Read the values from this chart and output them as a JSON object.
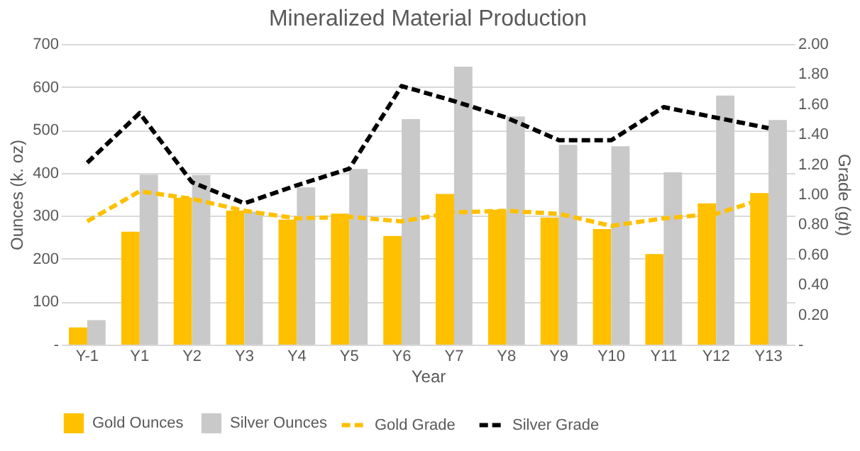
{
  "chart_data": {
    "type": "bar",
    "title": "Mineralized Material Production",
    "xlabel": "Year",
    "ylabel": "Ounces (k. oz)",
    "y2label": "Grade (g/t)",
    "categories": [
      "Y-1",
      "Y1",
      "Y2",
      "Y3",
      "Y4",
      "Y5",
      "Y6",
      "Y7",
      "Y8",
      "Y9",
      "Y10",
      "Y11",
      "Y12",
      "Y13"
    ],
    "series": [
      {
        "name": "Gold Ounces",
        "color": "#ffc000",
        "values": [
          40,
          263,
          342,
          312,
          291,
          305,
          253,
          351,
          314,
          296,
          269,
          211,
          329,
          353
        ]
      },
      {
        "name": "Silver Ounces",
        "color": "#c9c9c9",
        "values": [
          57,
          396,
          395,
          310,
          366,
          409,
          525,
          647,
          531,
          465,
          462,
          401,
          580,
          523
        ]
      },
      {
        "name": "Gold Grade",
        "type": "line",
        "axis": "y2",
        "line_style": "dashed",
        "color": "#ffc000",
        "values": [
          0.82,
          1.02,
          0.97,
          0.89,
          0.84,
          0.85,
          0.82,
          0.88,
          0.89,
          0.87,
          0.79,
          0.84,
          0.87,
          0.98
        ]
      },
      {
        "name": "Silver Grade",
        "type": "line",
        "axis": "y2",
        "line_style": "dashed",
        "color": "#000000",
        "values": [
          1.21,
          1.54,
          1.08,
          0.94,
          1.06,
          1.17,
          1.72,
          1.62,
          1.51,
          1.36,
          1.36,
          1.58,
          1.51,
          1.44
        ]
      }
    ],
    "ylim": [
      0,
      700
    ],
    "yticks": [
      {
        "value": 0,
        "label": "-"
      },
      100,
      200,
      300,
      400,
      500,
      600,
      700
    ],
    "y2lim": [
      0,
      2
    ],
    "y2ticks": [
      {
        "value": 0,
        "label": "-"
      },
      {
        "value": 0.2,
        "label": "0.20"
      },
      {
        "value": 0.4,
        "label": "0.40"
      },
      {
        "value": 0.6,
        "label": "0.60"
      },
      {
        "value": 0.8,
        "label": "0.80"
      },
      {
        "value": 1,
        "label": "1.00"
      },
      {
        "value": 1.2,
        "label": "1.20"
      },
      {
        "value": 1.4,
        "label": "1.40"
      },
      {
        "value": 1.6,
        "label": "1.60"
      },
      {
        "value": 1.8,
        "label": "1.80"
      },
      {
        "value": 2,
        "label": "2.00"
      }
    ],
    "grid": "y",
    "legend": "bottom"
  }
}
